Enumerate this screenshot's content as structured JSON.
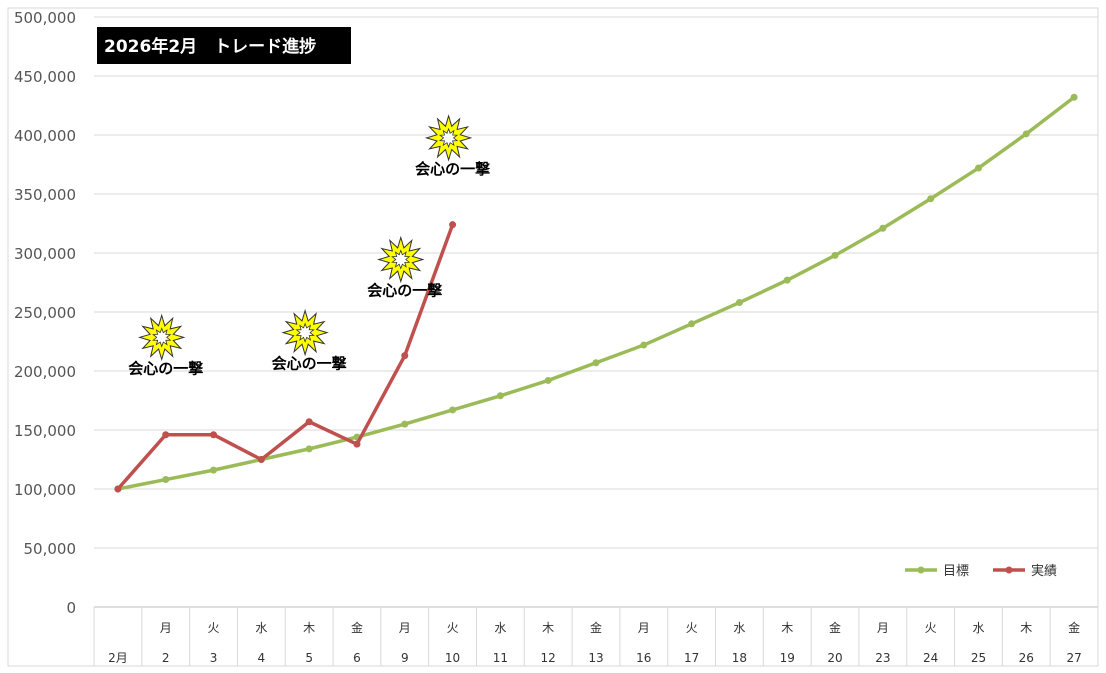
{
  "chart_data": {
    "type": "line",
    "title": "2026年2月　トレード進捗",
    "xlabel": "",
    "ylabel": "",
    "ylim": [
      0,
      500000
    ],
    "yticks": [
      0,
      50000,
      100000,
      150000,
      200000,
      250000,
      300000,
      350000,
      400000,
      450000,
      500000
    ],
    "ytick_labels": [
      "0",
      "50,000",
      "100,000",
      "150,000",
      "200,000",
      "250,000",
      "300,000",
      "350,000",
      "400,000",
      "450,000",
      "500,000"
    ],
    "grid": true,
    "legend_position": "bottom-right",
    "categories": [
      {
        "weekday": "",
        "day": "2月"
      },
      {
        "weekday": "月",
        "day": "2"
      },
      {
        "weekday": "火",
        "day": "3"
      },
      {
        "weekday": "水",
        "day": "4"
      },
      {
        "weekday": "木",
        "day": "5"
      },
      {
        "weekday": "金",
        "day": "6"
      },
      {
        "weekday": "月",
        "day": "9"
      },
      {
        "weekday": "火",
        "day": "10"
      },
      {
        "weekday": "水",
        "day": "11"
      },
      {
        "weekday": "木",
        "day": "12"
      },
      {
        "weekday": "金",
        "day": "13"
      },
      {
        "weekday": "月",
        "day": "16"
      },
      {
        "weekday": "火",
        "day": "17"
      },
      {
        "weekday": "水",
        "day": "18"
      },
      {
        "weekday": "木",
        "day": "19"
      },
      {
        "weekday": "金",
        "day": "20"
      },
      {
        "weekday": "月",
        "day": "23"
      },
      {
        "weekday": "火",
        "day": "24"
      },
      {
        "weekday": "水",
        "day": "25"
      },
      {
        "weekday": "木",
        "day": "26"
      },
      {
        "weekday": "金",
        "day": "27"
      }
    ],
    "series": [
      {
        "name": "目標",
        "color": "#9BBB59",
        "values": [
          100000,
          108000,
          116000,
          125000,
          134000,
          144000,
          155000,
          167000,
          179000,
          192000,
          207000,
          222000,
          240000,
          258000,
          277000,
          298000,
          321000,
          346000,
          372000,
          401000,
          432000
        ]
      },
      {
        "name": "実績",
        "color": "#C0504D",
        "values": [
          100000,
          146000,
          146000,
          125000,
          157000,
          138000,
          213000,
          324000,
          null,
          null,
          null,
          null,
          null,
          null,
          null,
          null,
          null,
          null,
          null,
          null,
          null
        ]
      }
    ],
    "annotations": [
      {
        "text": "会心の一撃",
        "index": 1,
        "value": 198000
      },
      {
        "text": "会心の一撃",
        "index": 4,
        "value": 202000
      },
      {
        "text": "会心の一撃",
        "index": 6,
        "value": 264000
      },
      {
        "text": "会心の一撃",
        "index": 7,
        "value": 367000
      }
    ]
  }
}
